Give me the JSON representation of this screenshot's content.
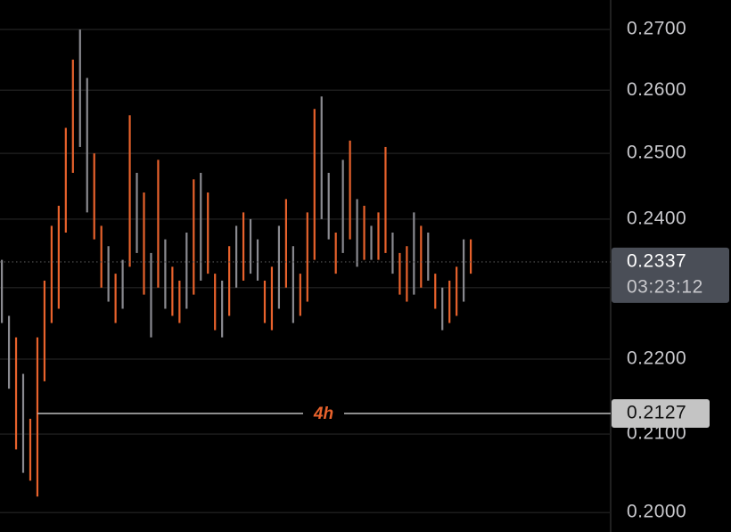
{
  "chart_data": {
    "type": "ohlc",
    "yscale": "log",
    "grid": true,
    "ylim": [
      0.1976,
      0.275
    ],
    "yticks": [
      {
        "value": 0.27,
        "label": "0.2700"
      },
      {
        "value": 0.26,
        "label": "0.2600"
      },
      {
        "value": 0.25,
        "label": "0.2500"
      },
      {
        "value": 0.24,
        "label": "0.2400"
      },
      {
        "value": 0.23,
        "label": "0.2300"
      },
      {
        "value": 0.22,
        "label": "0.2200"
      },
      {
        "value": 0.21,
        "label": "0.2100"
      },
      {
        "value": 0.2,
        "label": "0.2000"
      }
    ],
    "up_color": "#e8622c",
    "down_color": "#8a8a90",
    "high": [
      0.234,
      0.226,
      0.223,
      0.218,
      0.212,
      0.223,
      0.231,
      0.239,
      0.242,
      0.254,
      0.265,
      0.27,
      0.262,
      0.25,
      0.239,
      0.236,
      0.232,
      0.234,
      0.256,
      0.247,
      0.244,
      0.235,
      0.249,
      0.237,
      0.233,
      0.231,
      0.238,
      0.246,
      0.247,
      0.244,
      0.232,
      0.231,
      0.236,
      0.239,
      0.241,
      0.24,
      0.237,
      0.231,
      0.233,
      0.239,
      0.243,
      0.236,
      0.232,
      0.241,
      0.257,
      0.259,
      0.247,
      0.238,
      0.249,
      0.252,
      0.243,
      0.242,
      0.239,
      0.241,
      0.251,
      0.238,
      0.235,
      0.236,
      0.241,
      0.239,
      0.238,
      0.232,
      0.23,
      0.231,
      0.233,
      0.237,
      0.237
    ],
    "low": [
      0.225,
      0.216,
      0.208,
      0.205,
      0.204,
      0.202,
      0.217,
      0.225,
      0.227,
      0.238,
      0.247,
      0.251,
      0.241,
      0.237,
      0.23,
      0.228,
      0.225,
      0.227,
      0.233,
      0.235,
      0.229,
      0.223,
      0.23,
      0.227,
      0.226,
      0.225,
      0.227,
      0.229,
      0.231,
      0.232,
      0.224,
      0.223,
      0.226,
      0.23,
      0.231,
      0.232,
      0.231,
      0.225,
      0.224,
      0.227,
      0.23,
      0.225,
      0.226,
      0.228,
      0.234,
      0.24,
      0.237,
      0.232,
      0.235,
      0.237,
      0.233,
      0.234,
      0.234,
      0.234,
      0.235,
      0.232,
      0.229,
      0.228,
      0.229,
      0.23,
      0.231,
      0.227,
      0.224,
      0.225,
      0.226,
      0.228,
      0.232
    ],
    "up": [
      false,
      false,
      true,
      false,
      true,
      true,
      true,
      true,
      true,
      true,
      true,
      false,
      false,
      true,
      true,
      false,
      true,
      false,
      true,
      false,
      true,
      false,
      true,
      false,
      true,
      true,
      false,
      true,
      false,
      true,
      true,
      false,
      true,
      false,
      true,
      false,
      false,
      true,
      true,
      false,
      true,
      false,
      true,
      true,
      true,
      false,
      false,
      true,
      false,
      true,
      false,
      true,
      false,
      true,
      true,
      false,
      true,
      true,
      false,
      true,
      false,
      true,
      false,
      true,
      true,
      false,
      true
    ],
    "last_price": {
      "value": 0.2337,
      "label": "0.2337"
    },
    "countdown": "03:23:12",
    "level": {
      "value": 0.2127,
      "label": "0.2127",
      "tag": "4h"
    }
  }
}
